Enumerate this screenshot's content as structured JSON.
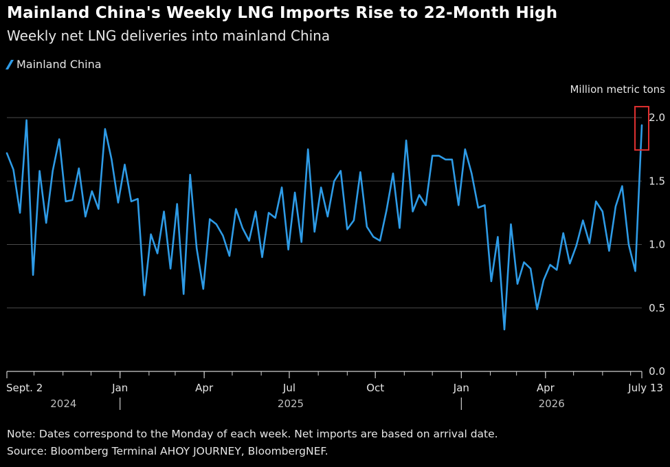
{
  "title": "Mainland China's Weekly LNG Imports Rise to 22-Month High",
  "subtitle": "Weekly net LNG deliveries into mainland China",
  "note": "Note: Dates correspond to the Monday of each week. Net imports are based on arrival date.",
  "source": "Source: Bloomberg Terminal AHOY JOURNEY, BloombergNEF.",
  "colors": {
    "line": "#2e9be6",
    "highlight": "#e03030",
    "grid": "#4a4a4a",
    "text": "#e6e6e6",
    "background": "#000000"
  },
  "chart_data": {
    "type": "line",
    "unit": "Million metric tons",
    "ylim": [
      0,
      2.0
    ],
    "yticks": [
      0.0,
      0.5,
      1.0,
      1.5,
      2.0
    ],
    "ytick_labels": [
      "0.0",
      "0.5",
      "1.0",
      "1.5",
      "2.0"
    ],
    "grid": true,
    "xrange": [
      "2024-09-02",
      "2026-07-13"
    ],
    "xticks": [
      {
        "date": "2024-09-02",
        "label": "Sept. 2"
      },
      {
        "date": "2025-01-01",
        "label": "Jan"
      },
      {
        "date": "2025-04-01",
        "label": "Apr"
      },
      {
        "date": "2025-07-01",
        "label": "Jul"
      },
      {
        "date": "2025-10-01",
        "label": "Oct"
      },
      {
        "date": "2026-01-01",
        "label": "Jan"
      },
      {
        "date": "2026-04-01",
        "label": "Apr"
      },
      {
        "date": "2026-07-13",
        "label": "July 13"
      }
    ],
    "year_labels": [
      {
        "label": "2024",
        "from": "2024-09-02",
        "to": "2025-01-01"
      },
      {
        "label": "2025",
        "from": "2025-01-01",
        "to": "2026-01-01"
      },
      {
        "label": "2026",
        "from": "2026-01-01",
        "to": "2026-07-13"
      }
    ],
    "year_dividers": [
      "2025-01-01",
      "2026-01-01"
    ],
    "series": [
      {
        "name": "Mainland China",
        "start": "2024-09-02",
        "interval_days": 7,
        "values": [
          1.72,
          1.59,
          1.25,
          1.98,
          0.76,
          1.58,
          1.17,
          1.58,
          1.83,
          1.34,
          1.35,
          1.6,
          1.22,
          1.42,
          1.28,
          1.91,
          1.67,
          1.33,
          1.63,
          1.34,
          1.36,
          0.6,
          1.08,
          0.93,
          1.26,
          0.81,
          1.32,
          0.61,
          1.55,
          0.97,
          0.65,
          1.2,
          1.16,
          1.07,
          0.91,
          1.28,
          1.13,
          1.03,
          1.26,
          0.9,
          1.25,
          1.21,
          1.45,
          0.96,
          1.41,
          1.02,
          1.75,
          1.1,
          1.45,
          1.22,
          1.5,
          1.58,
          1.12,
          1.19,
          1.57,
          1.14,
          1.06,
          1.03,
          1.27,
          1.56,
          1.13,
          1.82,
          1.26,
          1.39,
          1.31,
          1.7,
          1.7,
          1.67,
          1.67,
          1.31,
          1.75,
          1.56,
          1.29,
          1.31,
          0.71,
          1.06,
          0.33,
          1.16,
          0.69,
          0.86,
          0.81,
          0.49,
          0.72,
          0.84,
          0.8,
          1.09,
          0.85,
          0.99,
          1.19,
          1.01,
          1.34,
          1.26,
          0.95,
          1.3,
          1.46,
          1.0,
          0.79,
          1.94
        ]
      }
    ],
    "highlight": {
      "date": "2026-07-13",
      "value": 1.94
    }
  }
}
